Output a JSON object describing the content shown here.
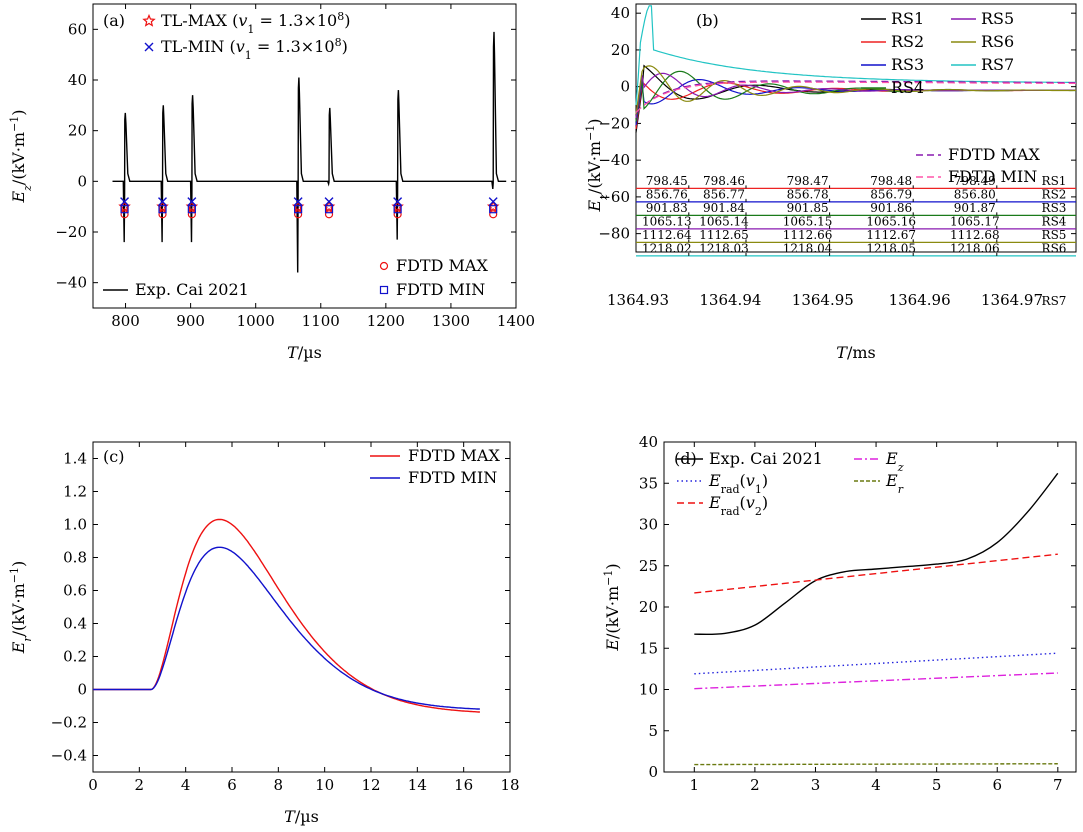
{
  "chart_data": [
    {
      "panel": "(a)",
      "type": "line",
      "xlabel": "T/µs",
      "ylabel": "Ez/(kV·m−1)",
      "xlim": [
        750,
        1400
      ],
      "ylim": [
        -50,
        70
      ],
      "xticks": [
        800,
        900,
        1000,
        1100,
        1200,
        1300,
        1400
      ],
      "yticks": [
        -40,
        -20,
        0,
        20,
        40,
        60
      ],
      "legend": [
        {
          "name": "TL-MAX (v1 = 1.3×10⁸)",
          "marker": "star",
          "color": "#ee1111"
        },
        {
          "name": "TL-MIN (v1 = 1.3×10⁸)",
          "marker": "x",
          "color": "#1111cc"
        },
        {
          "name": "FDTD MAX",
          "marker": "circle",
          "color": "#ee1111"
        },
        {
          "name": "FDTD MIN",
          "marker": "square",
          "color": "#1111cc"
        },
        {
          "name": "Exp. Cai 2021",
          "marker": "line",
          "color": "#000000"
        }
      ],
      "events": [
        798.5,
        856.8,
        901.9,
        1065.2,
        1112.7,
        1218.1,
        1364.95
      ],
      "pulse_peaks": [
        27,
        30,
        34,
        41,
        29,
        36,
        59
      ],
      "pulse_troughs": [
        -24,
        -24,
        -24,
        -36,
        -1,
        -23,
        -3
      ],
      "marker_values": {
        "tl_max": -10,
        "tl_min": -8,
        "fdtd_max": -13,
        "fdtd_min": -11
      }
    },
    {
      "panel": "(b)",
      "type": "line",
      "xlabel": "T/ms",
      "ylabel": "Ez/(kV·m−1)",
      "ylim": [
        -90,
        45
      ],
      "yticks": [
        -80,
        -60,
        -40,
        -20,
        0,
        20,
        40
      ],
      "legend": [
        {
          "name": "RS1",
          "color": "#000000"
        },
        {
          "name": "RS2",
          "color": "#ee2222"
        },
        {
          "name": "RS3",
          "color": "#1111cc"
        },
        {
          "name": "RS4",
          "color": "#1a7a1a"
        },
        {
          "name": "RS5",
          "color": "#8a1ab0"
        },
        {
          "name": "RS6",
          "color": "#8a8a10"
        },
        {
          "name": "RS7",
          "color": "#22c4c4"
        },
        {
          "name": "FDTD MAX",
          "color": "#8a1ab0",
          "dash": true
        },
        {
          "name": "FDTD MIN",
          "color": "#ff55aa",
          "dash": true
        }
      ],
      "tick_rows": [
        {
          "label": "RS1",
          "color": "#ee2222",
          "ticks": [
            "798.45",
            "798.46",
            "798.47",
            "798.48",
            "798.49"
          ]
        },
        {
          "label": "RS2",
          "color": "#1111cc",
          "ticks": [
            "856.76",
            "856.77",
            "856.78",
            "856.79",
            "856.80"
          ]
        },
        {
          "label": "RS3",
          "color": "#1a7a1a",
          "ticks": [
            "901.83",
            "901.84",
            "901.85",
            "901.86",
            "901.87"
          ]
        },
        {
          "label": "RS4",
          "color": "#8a1ab0",
          "ticks": [
            "1065.13",
            "1065.14",
            "1065.15",
            "1065.16",
            "1065.17"
          ]
        },
        {
          "label": "RS5",
          "color": "#8a8a10",
          "ticks": [
            "1112.64",
            "1112.65",
            "1112.66",
            "1112.67",
            "1112.68"
          ]
        },
        {
          "label": "RS6",
          "color": "#22c4c4",
          "ticks": [
            "1218.02",
            "1218.03",
            "1218.04",
            "1218.05",
            "1218.06"
          ]
        },
        {
          "label": "RS7",
          "color": "#000000",
          "ticks": [
            "1364.93",
            "1364.94",
            "1364.95",
            "1364.96",
            "1364.97"
          ]
        }
      ]
    },
    {
      "panel": "(c)",
      "type": "line",
      "xlabel": "T/µs",
      "ylabel": "Er/(kV·m−1)",
      "xlim": [
        0,
        18
      ],
      "ylim": [
        -0.5,
        1.5
      ],
      "xticks": [
        0,
        2,
        4,
        6,
        8,
        10,
        12,
        14,
        16,
        18
      ],
      "yticks": [
        -0.4,
        -0.2,
        0,
        0.2,
        0.4,
        0.6,
        0.8,
        1.0,
        1.2,
        1.4
      ],
      "series": [
        {
          "name": "FDTD MAX",
          "color": "#ee1111",
          "peak": 1.04,
          "peak_t": 5.5,
          "tail": -0.15
        },
        {
          "name": "FDTD MIN",
          "color": "#1111cc",
          "peak": 0.87,
          "peak_t": 5.5,
          "tail": -0.13
        }
      ],
      "onset_t": 2.5,
      "end_t": 16.7
    },
    {
      "panel": "(d)",
      "type": "line",
      "xlabel": "",
      "ylabel": "E/(kV·m−1)",
      "xlim": [
        0.5,
        7.3
      ],
      "ylim": [
        0,
        40
      ],
      "xticks": [
        1,
        2,
        3,
        4,
        5,
        6,
        7
      ],
      "yticks": [
        0,
        5,
        10,
        15,
        20,
        25,
        30,
        35,
        40
      ],
      "series": [
        {
          "name": "Exp. Cai 2021",
          "color": "#000000",
          "style": "solid",
          "x": [
            1,
            1.5,
            2,
            2.5,
            3,
            3.5,
            4,
            4.5,
            5,
            5.5,
            6,
            6.5,
            7
          ],
          "y": [
            16.7,
            16.8,
            17.8,
            20.5,
            23.2,
            24.3,
            24.6,
            24.9,
            25.2,
            25.8,
            27.8,
            31.5,
            36.2
          ]
        },
        {
          "name": "Erad(v1)",
          "color": "#2222dd",
          "style": "dotted",
          "x": [
            1,
            7
          ],
          "y": [
            11.9,
            14.4
          ]
        },
        {
          "name": "Erad(v2)",
          "color": "#ee1111",
          "style": "dashed",
          "x": [
            1,
            7
          ],
          "y": [
            21.7,
            26.4
          ]
        },
        {
          "name": "Ez",
          "color": "#dd22dd",
          "style": "dashdot",
          "x": [
            1,
            7
          ],
          "y": [
            10.1,
            12.0
          ]
        },
        {
          "name": "Er",
          "color": "#6a7a10",
          "style": "fine-dashed",
          "x": [
            1,
            7
          ],
          "y": [
            0.9,
            1.0
          ]
        }
      ]
    }
  ]
}
